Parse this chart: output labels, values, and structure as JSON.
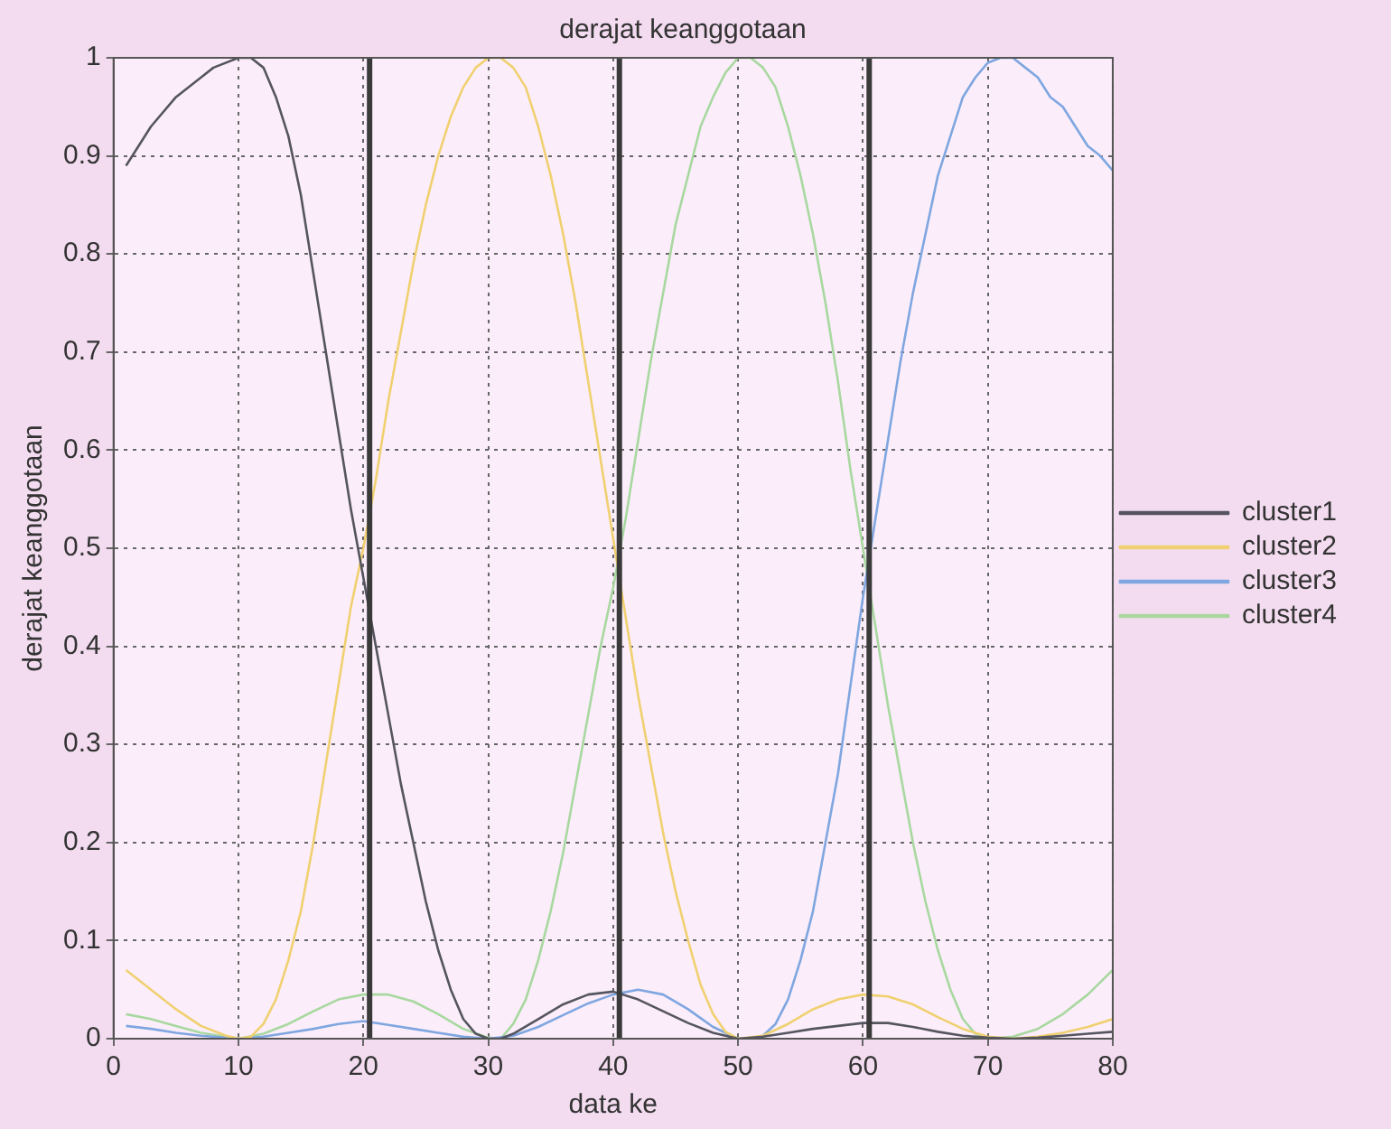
{
  "chart_data": {
    "type": "line",
    "title": "derajat keanggotaan",
    "xlabel": "data ke",
    "ylabel": "derajat keanggotaan",
    "xlim": [
      0,
      80
    ],
    "xticks": [
      0,
      10,
      20,
      30,
      40,
      50,
      60,
      70,
      80
    ],
    "ylim": [
      0,
      1
    ],
    "yticks": [
      0,
      0.1,
      0.2,
      0.3,
      0.4,
      0.5,
      0.6,
      0.7,
      0.8,
      0.9,
      1
    ],
    "grid": true,
    "legend": "right",
    "marker": "none",
    "line_style": "solid",
    "ref_lines": [
      {
        "axis": "x",
        "value": 20.5,
        "color": "#3a3a3a"
      },
      {
        "axis": "x",
        "value": 40.5,
        "color": "#3a3a3a"
      },
      {
        "axis": "x",
        "value": 60.5,
        "color": "#3a3a3a"
      }
    ],
    "series": [
      {
        "name": "cluster1",
        "color": "#555560",
        "x": [
          1,
          3,
          5,
          7,
          8,
          10,
          11,
          12,
          13,
          14,
          15,
          16,
          17,
          18,
          19,
          20,
          21,
          22,
          23,
          24,
          25,
          26,
          27,
          28,
          29,
          30,
          31,
          32,
          34,
          36,
          38,
          40,
          42,
          44,
          46,
          48,
          50,
          52,
          54,
          56,
          58,
          60,
          62,
          64,
          66,
          68,
          70,
          72,
          74,
          76,
          78,
          80
        ],
        "values": [
          0.89,
          0.93,
          0.96,
          0.98,
          0.99,
          1,
          1,
          0.99,
          0.96,
          0.92,
          0.86,
          0.78,
          0.7,
          0.62,
          0.54,
          0.47,
          0.4,
          0.33,
          0.26,
          0.2,
          0.14,
          0.09,
          0.05,
          0.02,
          0.005,
          0,
          0,
          0.005,
          0.02,
          0.035,
          0.045,
          0.048,
          0.04,
          0.028,
          0.016,
          0.006,
          0,
          0.002,
          0.006,
          0.01,
          0.013,
          0.016,
          0.016,
          0.012,
          0.007,
          0.003,
          0.001,
          0,
          0.001,
          0.003,
          0.005,
          0.007
        ]
      },
      {
        "name": "cluster2",
        "color": "#f0d070",
        "x": [
          1,
          3,
          5,
          7,
          9,
          10,
          11,
          12,
          13,
          14,
          15,
          16,
          17,
          18,
          19,
          20,
          21,
          22,
          23,
          24,
          25,
          26,
          27,
          28,
          29,
          30,
          31,
          32,
          33,
          34,
          35,
          36,
          37,
          38,
          39,
          40,
          41,
          42,
          43,
          44,
          45,
          46,
          47,
          48,
          49,
          50,
          52,
          54,
          56,
          58,
          60,
          62,
          64,
          66,
          68,
          70,
          72,
          74,
          76,
          78,
          80
        ],
        "values": [
          0.07,
          0.05,
          0.03,
          0.013,
          0.003,
          0,
          0.002,
          0.015,
          0.04,
          0.08,
          0.13,
          0.2,
          0.28,
          0.36,
          0.44,
          0.5,
          0.57,
          0.65,
          0.72,
          0.79,
          0.85,
          0.9,
          0.94,
          0.97,
          0.99,
          1,
          1,
          0.99,
          0.97,
          0.93,
          0.88,
          0.82,
          0.75,
          0.67,
          0.59,
          0.51,
          0.43,
          0.35,
          0.28,
          0.21,
          0.15,
          0.1,
          0.055,
          0.025,
          0.007,
          0,
          0.003,
          0.015,
          0.03,
          0.04,
          0.045,
          0.043,
          0.035,
          0.022,
          0.01,
          0.002,
          0,
          0.002,
          0.006,
          0.012,
          0.02
        ]
      },
      {
        "name": "cluster3",
        "color": "#7fa6e0",
        "x": [
          1,
          3,
          5,
          7,
          10,
          12,
          14,
          16,
          18,
          20,
          22,
          24,
          26,
          28,
          30,
          32,
          34,
          36,
          38,
          40,
          42,
          44,
          46,
          48,
          50,
          51,
          52,
          53,
          54,
          55,
          56,
          57,
          58,
          59,
          60,
          61,
          62,
          63,
          64,
          65,
          66,
          67,
          68,
          69,
          70,
          71,
          72,
          73,
          74,
          75,
          76,
          77,
          78,
          79,
          80
        ],
        "values": [
          0.013,
          0.01,
          0.006,
          0.003,
          0,
          0.002,
          0.006,
          0.01,
          0.015,
          0.018,
          0.014,
          0.01,
          0.006,
          0.002,
          0,
          0.003,
          0.012,
          0.024,
          0.036,
          0.045,
          0.05,
          0.045,
          0.03,
          0.012,
          0,
          0,
          0.003,
          0.015,
          0.04,
          0.08,
          0.13,
          0.2,
          0.27,
          0.36,
          0.45,
          0.53,
          0.61,
          0.69,
          0.76,
          0.82,
          0.88,
          0.92,
          0.96,
          0.98,
          0.995,
          1,
          1,
          0.99,
          0.98,
          0.96,
          0.95,
          0.93,
          0.91,
          0.9,
          0.885
        ]
      },
      {
        "name": "cluster4",
        "color": "#a8d8a0",
        "x": [
          1,
          3,
          5,
          7,
          10,
          12,
          14,
          16,
          18,
          20,
          22,
          24,
          26,
          28,
          30,
          31,
          32,
          33,
          34,
          35,
          36,
          37,
          38,
          39,
          40,
          41,
          42,
          43,
          44,
          45,
          46,
          47,
          48,
          49,
          50,
          51,
          52,
          53,
          54,
          55,
          56,
          57,
          58,
          59,
          60,
          61,
          62,
          63,
          64,
          65,
          66,
          67,
          68,
          69,
          70,
          72,
          74,
          76,
          78,
          80
        ],
        "values": [
          0.025,
          0.02,
          0.013,
          0.006,
          0,
          0.005,
          0.015,
          0.028,
          0.04,
          0.045,
          0.045,
          0.038,
          0.025,
          0.01,
          0.001,
          0,
          0.015,
          0.04,
          0.08,
          0.13,
          0.19,
          0.26,
          0.33,
          0.4,
          0.46,
          0.53,
          0.61,
          0.69,
          0.76,
          0.83,
          0.88,
          0.93,
          0.96,
          0.985,
          1,
          1,
          0.99,
          0.97,
          0.93,
          0.88,
          0.82,
          0.75,
          0.67,
          0.58,
          0.5,
          0.42,
          0.34,
          0.27,
          0.2,
          0.14,
          0.09,
          0.05,
          0.02,
          0.005,
          0,
          0.002,
          0.01,
          0.025,
          0.045,
          0.07
        ]
      }
    ]
  }
}
